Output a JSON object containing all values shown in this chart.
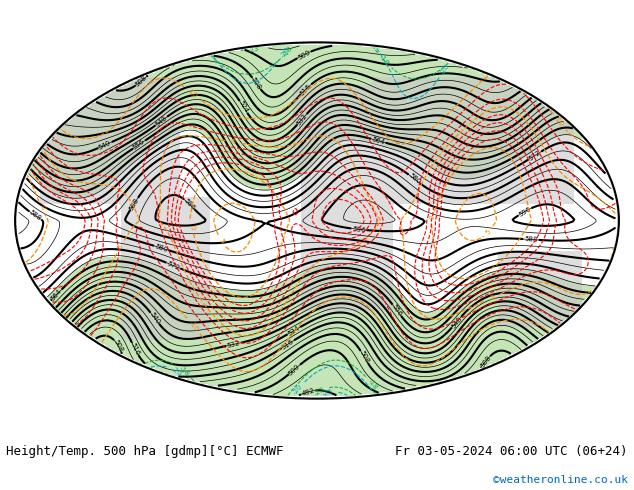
{
  "title_left": "Height/Temp. 500 hPa [gdmp][°C] ECMWF",
  "title_right": "Fr 03-05-2024 06:00 UTC (06+24)",
  "copyright": "©weatheronline.co.uk",
  "copyright_color": "#0066cc",
  "background_color": "#ffffff",
  "fig_width": 6.34,
  "fig_height": 4.9,
  "dpi": 100,
  "label_fontsize": 9,
  "copyright_fontsize": 8,
  "contour_label_fontsize": 5
}
